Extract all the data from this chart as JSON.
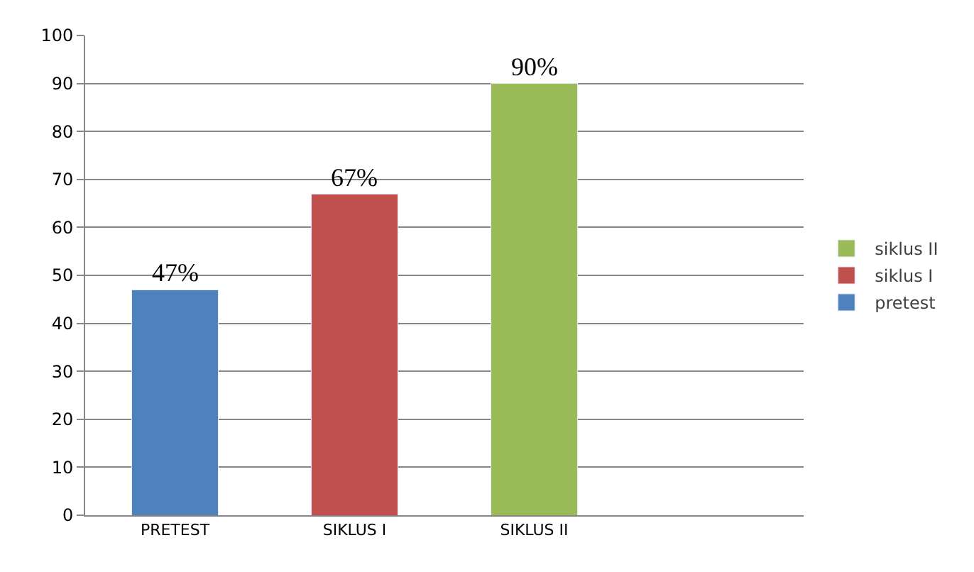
{
  "chart_data": {
    "type": "bar",
    "stacked": true,
    "categories": [
      "PRETEST",
      "SIKLUS I",
      "SIKLUS II",
      null
    ],
    "series": [
      {
        "name": "pretest",
        "color": "#4f81bd",
        "values": [
          47,
          null,
          null,
          null
        ],
        "value_labels": [
          "47%",
          null,
          null,
          null
        ]
      },
      {
        "name": "siklus I",
        "color": "#c0504d",
        "values": [
          null,
          67,
          null,
          null
        ],
        "value_labels": [
          null,
          "67%",
          null,
          null
        ]
      },
      {
        "name": "siklus II",
        "color": "#9bbb59",
        "values": [
          null,
          null,
          90,
          null
        ],
        "value_labels": [
          null,
          null,
          "90%",
          null
        ]
      }
    ],
    "ylim": [
      0,
      100
    ],
    "yticks": [
      0,
      10,
      20,
      30,
      40,
      50,
      60,
      70,
      80,
      90,
      100
    ],
    "grid": "y",
    "legend": "right"
  }
}
